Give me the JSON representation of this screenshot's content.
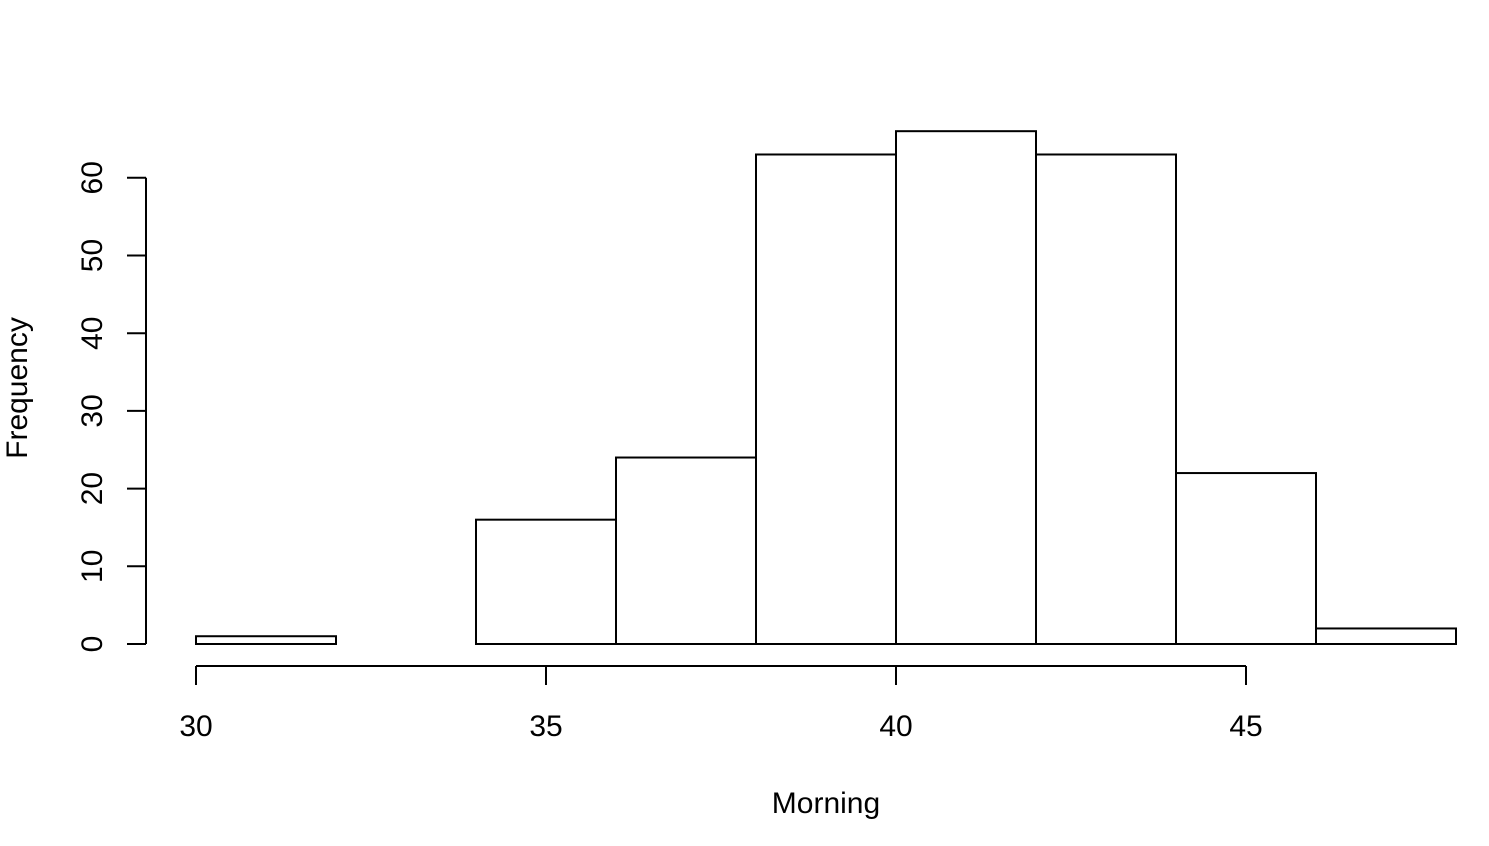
{
  "chart_data": {
    "type": "bar",
    "title": "",
    "xlabel": "Morning",
    "ylabel": "Frequency",
    "bins": [
      {
        "start": 30,
        "end": 32,
        "count": 1
      },
      {
        "start": 32,
        "end": 34,
        "count": 0
      },
      {
        "start": 34,
        "end": 36,
        "count": 16
      },
      {
        "start": 36,
        "end": 38,
        "count": 24
      },
      {
        "start": 38,
        "end": 40,
        "count": 63
      },
      {
        "start": 40,
        "end": 42,
        "count": 66
      },
      {
        "start": 42,
        "end": 44,
        "count": 63
      },
      {
        "start": 44,
        "end": 46,
        "count": 22
      },
      {
        "start": 46,
        "end": 48,
        "count": 2
      }
    ],
    "xlim": [
      30,
      48
    ],
    "ylim": [
      0,
      66
    ],
    "x_ticks": [
      30,
      35,
      40,
      45
    ],
    "y_ticks": [
      0,
      10,
      20,
      30,
      40,
      50,
      60
    ],
    "x_tick_labels": [
      "30",
      "35",
      "40",
      "45"
    ],
    "y_tick_labels": [
      "0",
      "10",
      "20",
      "30",
      "40",
      "50",
      "60"
    ],
    "grid": false,
    "bar_fill": "#ffffff",
    "bar_stroke": "#000000"
  }
}
